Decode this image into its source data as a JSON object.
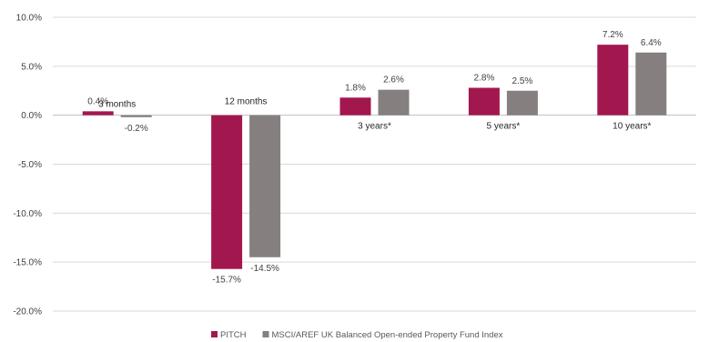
{
  "chart_data": {
    "type": "bar",
    "categories": [
      "3 months",
      "12 months",
      "3 years*",
      "5 years*",
      "10 years*"
    ],
    "series": [
      {
        "name": "PITCH",
        "values": [
          0.4,
          -15.7,
          1.8,
          2.8,
          7.2
        ],
        "labels": [
          "0.4%",
          "-15.7%",
          "1.8%",
          "2.8%",
          "7.2%"
        ],
        "color": "#a3174f"
      },
      {
        "name": "MSCI/AREF UK Balanced Open-ended Property Fund Index",
        "values": [
          -0.2,
          -14.5,
          2.6,
          2.5,
          6.4
        ],
        "labels": [
          "-0.2%",
          "-14.5%",
          "2.6%",
          "2.5%",
          "6.4%"
        ],
        "color": "#857f7f"
      }
    ],
    "y_ticks": [
      "10.0%",
      "5.0%",
      "0.0%",
      "-5.0%",
      "-10.0%",
      "-15.0%",
      "-20.0%"
    ],
    "ylim": [
      -20,
      10
    ],
    "grid": true,
    "legend_position": "bottom",
    "title": "",
    "xlabel": "",
    "ylabel": ""
  }
}
